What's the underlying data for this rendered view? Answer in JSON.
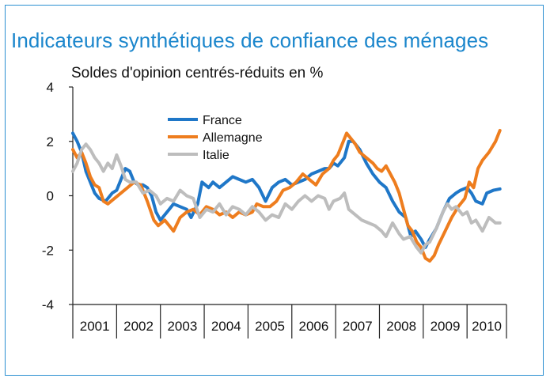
{
  "title": "Indicateurs synthétiques de confiance des ménages",
  "subtitle": "Soldes d'opinion centrés-réduits en %",
  "chart_data": {
    "type": "line",
    "title": "Indicateurs synthétiques de confiance des ménages",
    "subtitle": "Soldes d'opinion centrés-réduits en %",
    "xlabel": "",
    "ylabel": "",
    "ylim": [
      -4,
      4
    ],
    "yticks": [
      "4",
      "2",
      "0",
      "-2",
      "-4"
    ],
    "categories": [
      "2001",
      "2002",
      "2003",
      "2004",
      "2005",
      "2006",
      "2007",
      "2008",
      "2009",
      "2010"
    ],
    "x_start": 2001.0,
    "x_end": 2010.9,
    "grid": false,
    "legend_position": "upper-left-inside",
    "series": [
      {
        "name": "France",
        "color": "#1f77c8",
        "points": [
          [
            2001.0,
            2.3
          ],
          [
            2001.1,
            2.0
          ],
          [
            2001.2,
            1.6
          ],
          [
            2001.3,
            0.9
          ],
          [
            2001.4,
            0.5
          ],
          [
            2001.5,
            0.1
          ],
          [
            2001.6,
            -0.1
          ],
          [
            2001.75,
            -0.2
          ],
          [
            2001.9,
            0.1
          ],
          [
            2002.0,
            0.2
          ],
          [
            2002.1,
            0.6
          ],
          [
            2002.2,
            1.0
          ],
          [
            2002.3,
            0.9
          ],
          [
            2002.4,
            0.5
          ],
          [
            2002.5,
            0.4
          ],
          [
            2002.6,
            0.4
          ],
          [
            2002.7,
            0.3
          ],
          [
            2002.8,
            0.0
          ],
          [
            2002.9,
            -0.6
          ],
          [
            2003.0,
            -0.9
          ],
          [
            2003.1,
            -0.7
          ],
          [
            2003.2,
            -0.5
          ],
          [
            2003.3,
            -0.3
          ],
          [
            2003.45,
            -0.4
          ],
          [
            2003.6,
            -0.5
          ],
          [
            2003.7,
            -0.8
          ],
          [
            2003.85,
            -0.3
          ],
          [
            2003.95,
            0.5
          ],
          [
            2004.1,
            0.3
          ],
          [
            2004.2,
            0.5
          ],
          [
            2004.35,
            0.3
          ],
          [
            2004.5,
            0.5
          ],
          [
            2004.65,
            0.7
          ],
          [
            2004.8,
            0.6
          ],
          [
            2004.95,
            0.5
          ],
          [
            2005.1,
            0.6
          ],
          [
            2005.25,
            0.3
          ],
          [
            2005.4,
            -0.2
          ],
          [
            2005.55,
            0.3
          ],
          [
            2005.7,
            0.5
          ],
          [
            2005.85,
            0.6
          ],
          [
            2006.0,
            0.4
          ],
          [
            2006.15,
            0.5
          ],
          [
            2006.3,
            0.6
          ],
          [
            2006.45,
            0.8
          ],
          [
            2006.6,
            0.9
          ],
          [
            2006.75,
            1.0
          ],
          [
            2006.85,
            1.0
          ],
          [
            2006.95,
            1.2
          ],
          [
            2007.05,
            1.1
          ],
          [
            2007.2,
            1.4
          ],
          [
            2007.3,
            2.0
          ],
          [
            2007.4,
            2.0
          ],
          [
            2007.55,
            1.7
          ],
          [
            2007.7,
            1.2
          ],
          [
            2007.85,
            0.8
          ],
          [
            2008.0,
            0.5
          ],
          [
            2008.15,
            0.3
          ],
          [
            2008.3,
            -0.2
          ],
          [
            2008.45,
            -0.6
          ],
          [
            2008.6,
            -0.8
          ],
          [
            2008.72,
            -1.5
          ],
          [
            2008.82,
            -1.3
          ],
          [
            2008.95,
            -1.6
          ],
          [
            2009.05,
            -1.9
          ],
          [
            2009.15,
            -1.6
          ],
          [
            2009.3,
            -1.2
          ],
          [
            2009.45,
            -0.6
          ],
          [
            2009.6,
            -0.1
          ],
          [
            2009.75,
            0.1
          ],
          [
            2009.85,
            0.2
          ],
          [
            2010.0,
            0.3
          ],
          [
            2010.1,
            0.1
          ],
          [
            2010.2,
            -0.2
          ],
          [
            2010.35,
            -0.3
          ],
          [
            2010.45,
            0.1
          ],
          [
            2010.6,
            0.2
          ],
          [
            2010.75,
            0.25
          ]
        ]
      },
      {
        "name": "Allemagne",
        "color": "#ee7d1e",
        "points": [
          [
            2001.0,
            1.7
          ],
          [
            2001.1,
            1.4
          ],
          [
            2001.2,
            1.6
          ],
          [
            2001.3,
            1.2
          ],
          [
            2001.4,
            0.7
          ],
          [
            2001.5,
            0.4
          ],
          [
            2001.6,
            0.3
          ],
          [
            2001.7,
            -0.2
          ],
          [
            2001.8,
            -0.3
          ],
          [
            2001.95,
            -0.1
          ],
          [
            2002.1,
            0.1
          ],
          [
            2002.25,
            0.3
          ],
          [
            2002.4,
            0.5
          ],
          [
            2002.55,
            0.4
          ],
          [
            2002.7,
            -0.2
          ],
          [
            2002.85,
            -0.9
          ],
          [
            2002.95,
            -1.1
          ],
          [
            2003.1,
            -0.9
          ],
          [
            2003.2,
            -1.1
          ],
          [
            2003.3,
            -1.3
          ],
          [
            2003.45,
            -0.8
          ],
          [
            2003.6,
            -0.6
          ],
          [
            2003.75,
            -0.5
          ],
          [
            2003.9,
            -0.7
          ],
          [
            2004.05,
            -0.4
          ],
          [
            2004.2,
            -0.5
          ],
          [
            2004.35,
            -0.7
          ],
          [
            2004.5,
            -0.6
          ],
          [
            2004.65,
            -0.8
          ],
          [
            2004.8,
            -0.6
          ],
          [
            2004.95,
            -0.7
          ],
          [
            2005.1,
            -0.6
          ],
          [
            2005.2,
            -0.3
          ],
          [
            2005.35,
            -0.4
          ],
          [
            2005.5,
            -0.4
          ],
          [
            2005.65,
            -0.2
          ],
          [
            2005.8,
            0.2
          ],
          [
            2005.95,
            0.3
          ],
          [
            2006.1,
            0.5
          ],
          [
            2006.25,
            0.8
          ],
          [
            2006.4,
            0.6
          ],
          [
            2006.55,
            0.4
          ],
          [
            2006.7,
            0.8
          ],
          [
            2006.85,
            1.0
          ],
          [
            2006.95,
            1.3
          ],
          [
            2007.05,
            1.5
          ],
          [
            2007.15,
            1.9
          ],
          [
            2007.25,
            2.3
          ],
          [
            2007.35,
            2.1
          ],
          [
            2007.45,
            1.9
          ],
          [
            2007.55,
            1.6
          ],
          [
            2007.7,
            1.4
          ],
          [
            2007.85,
            1.2
          ],
          [
            2007.95,
            1.0
          ],
          [
            2008.05,
            0.9
          ],
          [
            2008.15,
            1.1
          ],
          [
            2008.25,
            0.8
          ],
          [
            2008.35,
            0.5
          ],
          [
            2008.45,
            0.1
          ],
          [
            2008.55,
            -0.5
          ],
          [
            2008.65,
            -1.1
          ],
          [
            2008.75,
            -1.3
          ],
          [
            2008.85,
            -1.7
          ],
          [
            2008.95,
            -1.9
          ],
          [
            2009.05,
            -2.3
          ],
          [
            2009.15,
            -2.4
          ],
          [
            2009.25,
            -2.2
          ],
          [
            2009.35,
            -1.8
          ],
          [
            2009.5,
            -1.3
          ],
          [
            2009.65,
            -0.8
          ],
          [
            2009.8,
            -0.4
          ],
          [
            2009.95,
            -0.1
          ],
          [
            2010.05,
            0.5
          ],
          [
            2010.15,
            0.3
          ],
          [
            2010.25,
            1.0
          ],
          [
            2010.35,
            1.3
          ],
          [
            2010.5,
            1.6
          ],
          [
            2010.65,
            2.0
          ],
          [
            2010.75,
            2.4
          ]
        ]
      },
      {
        "name": "Italie",
        "color": "#bdbdbd",
        "points": [
          [
            2001.0,
            0.9
          ],
          [
            2001.1,
            1.2
          ],
          [
            2001.2,
            1.7
          ],
          [
            2001.3,
            1.9
          ],
          [
            2001.4,
            1.7
          ],
          [
            2001.5,
            1.4
          ],
          [
            2001.6,
            1.2
          ],
          [
            2001.7,
            0.9
          ],
          [
            2001.8,
            1.2
          ],
          [
            2001.9,
            1.0
          ],
          [
            2002.0,
            1.5
          ],
          [
            2002.1,
            1.1
          ],
          [
            2002.2,
            0.6
          ],
          [
            2002.3,
            0.5
          ],
          [
            2002.45,
            0.5
          ],
          [
            2002.6,
            0.1
          ],
          [
            2002.75,
            0.2
          ],
          [
            2002.9,
            0.0
          ],
          [
            2003.0,
            -0.3
          ],
          [
            2003.15,
            -0.1
          ],
          [
            2003.3,
            -0.2
          ],
          [
            2003.45,
            0.2
          ],
          [
            2003.6,
            0.0
          ],
          [
            2003.75,
            -0.1
          ],
          [
            2003.9,
            -0.8
          ],
          [
            2004.05,
            -0.5
          ],
          [
            2004.2,
            -0.6
          ],
          [
            2004.35,
            -0.3
          ],
          [
            2004.5,
            -0.7
          ],
          [
            2004.65,
            -0.4
          ],
          [
            2004.8,
            -0.5
          ],
          [
            2004.95,
            -0.7
          ],
          [
            2005.1,
            -0.4
          ],
          [
            2005.25,
            -0.6
          ],
          [
            2005.4,
            -0.9
          ],
          [
            2005.55,
            -0.7
          ],
          [
            2005.7,
            -0.8
          ],
          [
            2005.85,
            -0.3
          ],
          [
            2006.0,
            -0.5
          ],
          [
            2006.15,
            -0.2
          ],
          [
            2006.3,
            0.0
          ],
          [
            2006.45,
            -0.2
          ],
          [
            2006.6,
            0.0
          ],
          [
            2006.75,
            -0.1
          ],
          [
            2006.85,
            -0.5
          ],
          [
            2006.95,
            -0.2
          ],
          [
            2007.1,
            -0.1
          ],
          [
            2007.2,
            0.1
          ],
          [
            2007.3,
            -0.5
          ],
          [
            2007.45,
            -0.7
          ],
          [
            2007.6,
            -0.9
          ],
          [
            2007.75,
            -1.0
          ],
          [
            2007.9,
            -1.1
          ],
          [
            2008.05,
            -1.3
          ],
          [
            2008.15,
            -1.5
          ],
          [
            2008.3,
            -1.0
          ],
          [
            2008.45,
            -1.4
          ],
          [
            2008.55,
            -1.6
          ],
          [
            2008.7,
            -1.5
          ],
          [
            2008.85,
            -1.9
          ],
          [
            2008.95,
            -2.1
          ],
          [
            2009.05,
            -1.8
          ],
          [
            2009.15,
            -1.7
          ],
          [
            2009.3,
            -1.2
          ],
          [
            2009.45,
            -0.6
          ],
          [
            2009.55,
            -0.3
          ],
          [
            2009.65,
            -0.5
          ],
          [
            2009.75,
            -0.4
          ],
          [
            2009.9,
            -0.7
          ],
          [
            2010.0,
            -0.6
          ],
          [
            2010.1,
            -1.0
          ],
          [
            2010.2,
            -0.9
          ],
          [
            2010.35,
            -1.3
          ],
          [
            2010.5,
            -0.8
          ],
          [
            2010.65,
            -1.0
          ],
          [
            2010.75,
            -1.0
          ]
        ]
      }
    ]
  }
}
